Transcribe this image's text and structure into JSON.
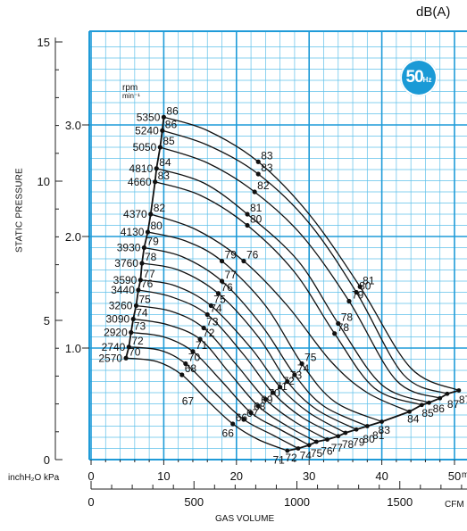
{
  "chart_data": {
    "type": "line",
    "sound_unit": "dB(A)",
    "frequency_badge": {
      "number": "50",
      "unit": "Hz"
    },
    "ylabel": "STATIC PRESSURE",
    "units_label": "inchH₂O  kPa",
    "xlabel": "GAS VOLUME",
    "x_kpa_unit": "m³/min",
    "x_cfm_unit": "CFM",
    "xlim_m3min": [
      0,
      50
    ],
    "ylim_kpa": [
      0,
      3.6
    ],
    "kpa_ticks": [
      "1.0",
      "2.0",
      "3.0"
    ],
    "inch_ticks": [
      "0",
      "5",
      "10",
      "15"
    ],
    "x_ticks": [
      "0",
      "10",
      "20",
      "30",
      "40",
      "50"
    ],
    "cfm_ticks": [
      "0",
      "500",
      "1000",
      "1500"
    ],
    "rpm_label": [
      "rpm",
      "min⁻¹"
    ],
    "grid": true,
    "series": [
      {
        "name": "5350",
        "labels": [
          "86",
          "83",
          "81"
        ],
        "points": [
          [
            10,
            3.07
          ],
          [
            16,
            2.95
          ],
          [
            23,
            2.67
          ],
          [
            30,
            2.2
          ],
          [
            37,
            1.55
          ],
          [
            44,
            0.82
          ],
          [
            50.6,
            0.62
          ]
        ]
      },
      {
        "name": "5240",
        "labels": [
          "86",
          "83",
          "80"
        ],
        "points": [
          [
            9.8,
            2.95
          ],
          [
            16,
            2.82
          ],
          [
            23,
            2.56
          ],
          [
            30,
            2.12
          ],
          [
            36.5,
            1.5
          ],
          [
            43,
            0.76
          ],
          [
            49,
            0.59
          ]
        ]
      },
      {
        "name": "5050",
        "labels": [
          "85",
          "82",
          "79"
        ],
        "points": [
          [
            9.5,
            2.8
          ],
          [
            16,
            2.66
          ],
          [
            22.5,
            2.4
          ],
          [
            29,
            2.01
          ],
          [
            35.5,
            1.42
          ],
          [
            42,
            0.71
          ],
          [
            48,
            0.55
          ]
        ]
      },
      {
        "name": "4810",
        "labels": [
          "84",
          "81",
          "78"
        ],
        "points": [
          [
            9.0,
            2.61
          ],
          [
            15.5,
            2.48
          ],
          [
            21.5,
            2.2
          ],
          [
            28.5,
            1.78
          ],
          [
            34,
            1.22
          ],
          [
            40,
            0.67
          ],
          [
            46.5,
            0.51
          ]
        ]
      },
      {
        "name": "4660",
        "labels": [
          "83",
          "80",
          "78"
        ],
        "points": [
          [
            8.8,
            2.49
          ],
          [
            15,
            2.37
          ],
          [
            21.5,
            2.1
          ],
          [
            28,
            1.68
          ],
          [
            33.5,
            1.13
          ],
          [
            39,
            0.64
          ],
          [
            45.5,
            0.49
          ]
        ]
      },
      {
        "name": "4370",
        "labels": [
          "82",
          "76"
        ],
        "points": [
          [
            8.2,
            2.2
          ],
          [
            14.5,
            2.06
          ],
          [
            21,
            1.78
          ],
          [
            27,
            1.38
          ],
          [
            33,
            0.88
          ],
          [
            38,
            0.6
          ],
          [
            43.8,
            0.43
          ]
        ]
      },
      {
        "name": "4130",
        "labels": [
          "80",
          "79",
          "75"
        ],
        "points": [
          [
            7.8,
            2.04
          ],
          [
            13,
            1.96
          ],
          [
            18,
            1.78
          ],
          [
            24,
            1.38
          ],
          [
            29,
            0.86
          ],
          [
            33.5,
            0.52
          ],
          [
            40,
            0.34
          ]
        ]
      },
      {
        "name": "3930",
        "labels": [
          "79",
          "77",
          "74"
        ],
        "points": [
          [
            7.3,
            1.9
          ],
          [
            12.5,
            1.82
          ],
          [
            18,
            1.6
          ],
          [
            23.5,
            1.2
          ],
          [
            28,
            0.76
          ],
          [
            32,
            0.48
          ],
          [
            38,
            0.3
          ]
        ]
      },
      {
        "name": "3760",
        "labels": [
          "78",
          "76",
          "73"
        ],
        "points": [
          [
            7.0,
            1.76
          ],
          [
            12,
            1.7
          ],
          [
            17.5,
            1.49
          ],
          [
            23,
            1.1
          ],
          [
            27,
            0.7
          ],
          [
            31,
            0.45
          ],
          [
            36.5,
            0.27
          ]
        ]
      },
      {
        "name": "3590",
        "labels": [
          "77",
          "75",
          "72"
        ],
        "points": [
          [
            6.8,
            1.61
          ],
          [
            11.5,
            1.56
          ],
          [
            16.5,
            1.38
          ],
          [
            22,
            1.0
          ],
          [
            26,
            0.65
          ],
          [
            30,
            0.42
          ],
          [
            35,
            0.24
          ]
        ]
      },
      {
        "name": "3440",
        "labels": [
          "76",
          "74",
          "71"
        ],
        "points": [
          [
            6.5,
            1.52
          ],
          [
            11,
            1.46
          ],
          [
            16,
            1.3
          ],
          [
            21,
            0.94
          ],
          [
            25,
            0.6
          ],
          [
            29,
            0.38
          ],
          [
            34,
            0.21
          ]
        ]
      },
      {
        "name": "3260",
        "labels": [
          "75",
          "73",
          "70"
        ],
        "points": [
          [
            6.2,
            1.38
          ],
          [
            11,
            1.33
          ],
          [
            15.5,
            1.18
          ],
          [
            20,
            0.85
          ],
          [
            24,
            0.54
          ],
          [
            28,
            0.34
          ],
          [
            32.5,
            0.18
          ]
        ]
      },
      {
        "name": "3090",
        "labels": [
          "74",
          "72",
          "69"
        ],
        "points": [
          [
            5.8,
            1.26
          ],
          [
            10.5,
            1.21
          ],
          [
            15,
            1.08
          ],
          [
            19,
            0.78
          ],
          [
            23,
            0.48
          ],
          [
            27,
            0.3
          ],
          [
            31,
            0.16
          ]
        ]
      },
      {
        "name": "2920",
        "labels": [
          "73",
          "71",
          "68"
        ],
        "points": [
          [
            5.5,
            1.14
          ],
          [
            10,
            1.1
          ],
          [
            14,
            0.97
          ],
          [
            18,
            0.7
          ],
          [
            22,
            0.42
          ],
          [
            26,
            0.27
          ],
          [
            30,
            0.13
          ]
        ]
      },
      {
        "name": "2740",
        "labels": [
          "72",
          "70",
          "67"
        ],
        "points": [
          [
            5.2,
            1.01
          ],
          [
            9.5,
            0.98
          ],
          [
            13,
            0.86
          ],
          [
            17,
            0.6
          ],
          [
            21,
            0.36
          ],
          [
            25,
            0.22
          ],
          [
            28.5,
            0.1
          ]
        ]
      },
      {
        "name": "2570",
        "labels": [
          "70",
          "68",
          "66"
        ],
        "points": [
          [
            4.8,
            0.91
          ],
          [
            9,
            0.88
          ],
          [
            12.5,
            0.76
          ],
          [
            16,
            0.53
          ],
          [
            19.5,
            0.32
          ],
          [
            23,
            0.18
          ],
          [
            27,
            0.08
          ]
        ]
      }
    ],
    "side_labels": [
      {
        "text": "67",
        "x": 12.5,
        "y": 0.59
      },
      {
        "text": "66",
        "x": 18.0,
        "y": 0.3
      },
      {
        "text": "83",
        "x": 39.5,
        "y": 0.33
      },
      {
        "text": "84",
        "x": 43.5,
        "y": 0.43
      },
      {
        "text": "85",
        "x": 45.5,
        "y": 0.48
      },
      {
        "text": "86",
        "x": 47.0,
        "y": 0.52
      },
      {
        "text": "87",
        "x": 49.0,
        "y": 0.56
      },
      {
        "text": "87",
        "x": 50.6,
        "y": 0.6
      },
      {
        "text": "71",
        "x": 25.0,
        "y": 0.06
      },
      {
        "text": "72",
        "x": 26.7,
        "y": 0.08
      },
      {
        "text": "74",
        "x": 28.7,
        "y": 0.1
      },
      {
        "text": "75",
        "x": 30.2,
        "y": 0.12
      },
      {
        "text": "76",
        "x": 31.6,
        "y": 0.14
      },
      {
        "text": "77",
        "x": 33.0,
        "y": 0.17
      },
      {
        "text": "78",
        "x": 34.5,
        "y": 0.2
      },
      {
        "text": "79",
        "x": 36.0,
        "y": 0.22
      },
      {
        "text": "80",
        "x": 37.4,
        "y": 0.25
      },
      {
        "text": "81",
        "x": 38.7,
        "y": 0.28
      }
    ]
  }
}
